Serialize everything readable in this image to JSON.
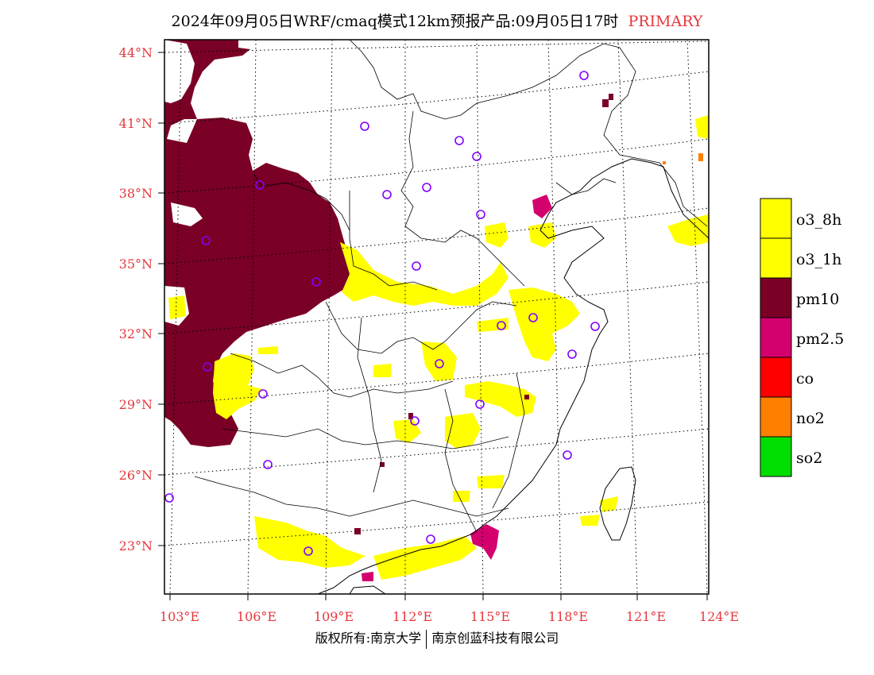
{
  "title": {
    "text": "2024年09月05日WRF/cmaq模式12km预报产品:09月05日17时",
    "tag": "PRIMARY"
  },
  "axes": {
    "lat_labels": [
      "44°N",
      "41°N",
      "38°N",
      "35°N",
      "32°N",
      "29°N",
      "26°N",
      "23°N"
    ],
    "lon_labels": [
      "103°E",
      "106°E",
      "109°E",
      "112°E",
      "115°E",
      "118°E",
      "121°E",
      "124°E"
    ]
  },
  "legend": {
    "items": [
      {
        "label": "o3_8h",
        "color": "#ffff00"
      },
      {
        "label": "o3_1h",
        "color": "#ffff00"
      },
      {
        "label": "pm10",
        "color": "#7a0025"
      },
      {
        "label": "pm2.5",
        "color": "#d4006e"
      },
      {
        "label": "co",
        "color": "#ff0000"
      },
      {
        "label": "no2",
        "color": "#ff7f00"
      },
      {
        "label": "so2",
        "color": "#00dd00"
      }
    ]
  },
  "palette": {
    "pm10": "#7a0025",
    "o3": "#ffff00",
    "pm25": "#d4006e",
    "no2": "#ff7f00",
    "axis_label": "#e5373c",
    "station_marker": "#8000ff"
  },
  "footer": {
    "left": "版权所有:南京大学",
    "right": "南京创蓝科技有限公司"
  }
}
